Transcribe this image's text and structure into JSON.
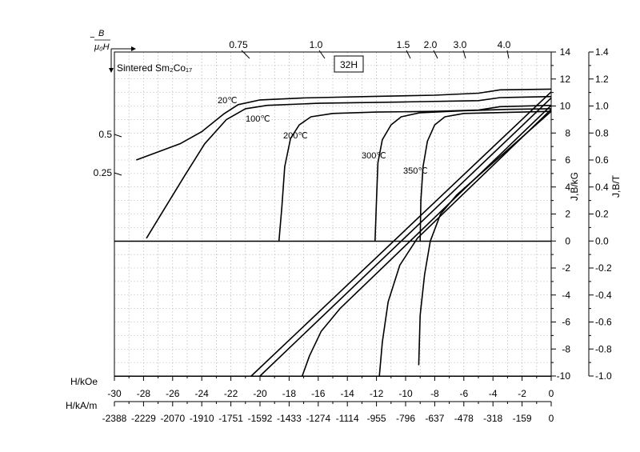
{
  "chart_data": {
    "type": "line",
    "title": "32H",
    "material": "Sintered Sm₂Co₁₇",
    "pc_axis_label": "− B/μ₀H",
    "xlabel_oe": "H/kOe",
    "xlabel_si": "H/kA/m",
    "ylabel_left_inner": "J,B/kG",
    "ylabel_right": "J,B/T",
    "x_ticks_koe": [
      "-30",
      "-28",
      "-26",
      "-24",
      "-22",
      "-20",
      "-18",
      "-16",
      "-14",
      "-12",
      "-10",
      "-8",
      "-6",
      "-4",
      "-2",
      "0"
    ],
    "x_ticks_kam": [
      "-2388",
      "-2229",
      "-2070",
      "-1910",
      "-1751",
      "-1592",
      "-1433",
      "-1274",
      "-1114",
      "-955",
      "-796",
      "-637",
      "-478",
      "-318",
      "-159",
      "0"
    ],
    "y_ticks_kg": [
      "-10",
      "-8",
      "-6",
      "-4",
      "-2",
      "0",
      "2",
      "4",
      "6",
      "8",
      "10",
      "12",
      "14"
    ],
    "y_ticks_t": [
      "-1.0",
      "-0.8",
      "-0.6",
      "-0.4",
      "-0.2",
      "0.0",
      "0.2",
      "0.4",
      "0.6",
      "0.8",
      "1.0",
      "1.2",
      "1.4"
    ],
    "pc_ticks_top": [
      "0.75",
      "1.0",
      "1.5",
      "2.0",
      "3.0",
      "4.0"
    ],
    "pc_ticks_left": [
      "0.5",
      "0.25"
    ],
    "xlim_koe": [
      -30,
      0
    ],
    "ylim_kg": [
      -10,
      14
    ],
    "grid": true,
    "temperatures": [
      "20℃",
      "100℃",
      "200℃",
      "300℃",
      "350℃"
    ],
    "series": [
      {
        "type": "J",
        "temperature": "20℃",
        "points": [
          [
            -28.5,
            6
          ],
          [
            -27,
            6.6
          ],
          [
            -25.5,
            7.2
          ],
          [
            -24,
            8.1
          ],
          [
            -22.5,
            9.4
          ],
          [
            -21.5,
            10.1
          ],
          [
            -20,
            10.45
          ],
          [
            -17,
            10.6
          ],
          [
            -12,
            10.72
          ],
          [
            -8,
            10.8
          ],
          [
            -5,
            10.95
          ],
          [
            -3.5,
            11.2
          ],
          [
            0,
            11.25
          ]
        ]
      },
      {
        "type": "J",
        "temperature": "100℃",
        "points": [
          [
            -27.8,
            0.2
          ],
          [
            -26.5,
            2.5
          ],
          [
            -25.2,
            4.8
          ],
          [
            -23.8,
            7.2
          ],
          [
            -22.3,
            9
          ],
          [
            -21,
            9.8
          ],
          [
            -19.5,
            10.05
          ],
          [
            -16,
            10.2
          ],
          [
            -10,
            10.3
          ],
          [
            -5,
            10.4
          ],
          [
            -3.5,
            10.62
          ],
          [
            0,
            10.7
          ]
        ]
      },
      {
        "type": "J",
        "temperature": "200℃",
        "points": [
          [
            -18.7,
            0
          ],
          [
            -18.5,
            2.5
          ],
          [
            -18.3,
            5.5
          ],
          [
            -17.9,
            7.6
          ],
          [
            -17.3,
            8.6
          ],
          [
            -16.5,
            9.2
          ],
          [
            -15,
            9.45
          ],
          [
            -12,
            9.55
          ],
          [
            -8,
            9.6
          ],
          [
            -5,
            9.7
          ],
          [
            -3.5,
            9.95
          ],
          [
            0,
            10.05
          ]
        ]
      },
      {
        "type": "J",
        "temperature": "300℃",
        "points": [
          [
            -12.1,
            0
          ],
          [
            -12,
            3
          ],
          [
            -11.9,
            5.8
          ],
          [
            -11.6,
            7.5
          ],
          [
            -11,
            8.6
          ],
          [
            -10.3,
            9.2
          ],
          [
            -9,
            9.5
          ],
          [
            -6,
            9.65
          ],
          [
            -3,
            9.75
          ],
          [
            0,
            9.8
          ]
        ]
      },
      {
        "type": "J",
        "temperature": "350℃",
        "points": [
          [
            -9,
            0
          ],
          [
            -8.95,
            3
          ],
          [
            -8.8,
            5.5
          ],
          [
            -8.5,
            7.4
          ],
          [
            -8,
            8.6
          ],
          [
            -7.3,
            9.2
          ],
          [
            -6,
            9.45
          ],
          [
            -4,
            9.5
          ],
          [
            -2,
            9.55
          ],
          [
            0,
            9.6
          ]
        ]
      },
      {
        "type": "B",
        "temperature": "20℃",
        "points": [
          [
            -20.6,
            -10
          ],
          [
            0,
            11.05
          ]
        ]
      },
      {
        "type": "B",
        "temperature": "100℃",
        "points": [
          [
            -20,
            -10
          ],
          [
            0,
            10.6
          ]
        ]
      },
      {
        "type": "B",
        "temperature": "200℃",
        "points": [
          [
            -17.1,
            -10
          ],
          [
            -16.6,
            -8.5
          ],
          [
            -15.8,
            -6.7
          ],
          [
            -14.5,
            -5
          ],
          [
            0,
            10.05
          ]
        ]
      },
      {
        "type": "B",
        "temperature": "300℃",
        "points": [
          [
            -11.8,
            -10
          ],
          [
            -11.6,
            -7.5
          ],
          [
            -11.2,
            -4.5
          ],
          [
            -10.4,
            -1.8
          ],
          [
            -9.2,
            0.2
          ],
          [
            0,
            9.75
          ]
        ]
      },
      {
        "type": "B",
        "temperature": "350℃",
        "points": [
          [
            -9.1,
            -9.2
          ],
          [
            -9,
            -5.5
          ],
          [
            -8.7,
            -2.5
          ],
          [
            -8.3,
            0
          ],
          [
            -7.6,
            2
          ],
          [
            -6.5,
            3.4
          ],
          [
            0,
            9.6
          ]
        ]
      }
    ]
  }
}
